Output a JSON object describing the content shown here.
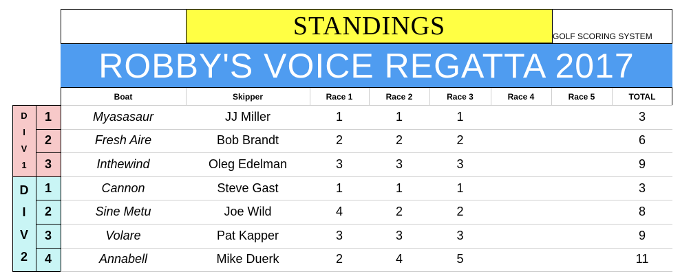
{
  "title": "STANDINGS",
  "scoring_system": "GOLF SCORING SYSTEM",
  "regatta_name": "ROBBY'S VOICE REGATTA 2017",
  "columns": [
    "Boat",
    "Skipper",
    "Race 1",
    "Race 2",
    "Race 3",
    "Race 4",
    "Race 5",
    "TOTAL"
  ],
  "divisions": [
    {
      "label_letters": [
        "D",
        "I",
        "V",
        "1"
      ],
      "color": "#f7c9c9",
      "rows": [
        {
          "place": "1",
          "boat": "Myasasaur",
          "skipper": "JJ Miller",
          "races": [
            "1",
            "1",
            "1",
            "",
            ""
          ],
          "total": "3"
        },
        {
          "place": "2",
          "boat": "Fresh Aire",
          "skipper": "Bob Brandt",
          "races": [
            "2",
            "2",
            "2",
            "",
            ""
          ],
          "total": "6"
        },
        {
          "place": "3",
          "boat": "Inthewind",
          "skipper": "Oleg Edelman",
          "races": [
            "3",
            "3",
            "3",
            "",
            ""
          ],
          "total": "9"
        }
      ]
    },
    {
      "label_letters": [
        "D",
        "I",
        "V",
        "2"
      ],
      "color": "#c9f5f5",
      "rows": [
        {
          "place": "1",
          "boat": "Cannon",
          "skipper": "Steve Gast",
          "races": [
            "1",
            "1",
            "1",
            "",
            ""
          ],
          "total": "3"
        },
        {
          "place": "2",
          "boat": "Sine Metu",
          "skipper": "Joe Wild",
          "races": [
            "4",
            "2",
            "2",
            "",
            ""
          ],
          "total": "8"
        },
        {
          "place": "3",
          "boat": "Volare",
          "skipper": "Pat Kapper",
          "races": [
            "3",
            "3",
            "3",
            "",
            ""
          ],
          "total": "9"
        },
        {
          "place": "4",
          "boat": "Annabell",
          "skipper": "Mike Duerk",
          "races": [
            "2",
            "4",
            "5",
            "",
            ""
          ],
          "total": "11"
        }
      ]
    }
  ]
}
